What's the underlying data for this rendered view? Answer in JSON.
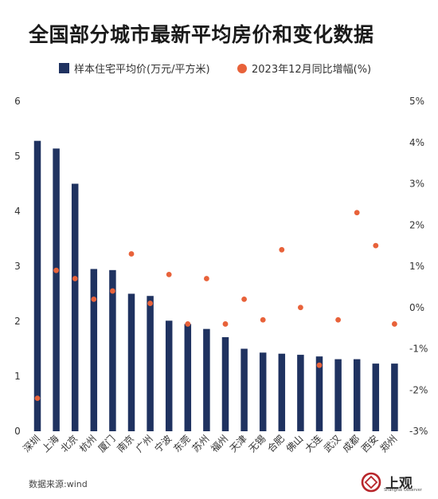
{
  "chart_data": {
    "type": "bar",
    "title": "全国部分城市最新平均房价和变化数据",
    "categories": [
      "深圳",
      "上海",
      "北京",
      "杭州",
      "厦门",
      "南京",
      "广州",
      "宁波",
      "东莞",
      "苏州",
      "福州",
      "天津",
      "无锡",
      "合肥",
      "佛山",
      "大连",
      "武汉",
      "成都",
      "西安",
      "郑州"
    ],
    "series": [
      {
        "name": "样本住宅平均价(万元/平方米)",
        "type": "bar",
        "axis": "left",
        "color": "#1f3260",
        "values": [
          5.28,
          5.14,
          4.5,
          2.95,
          2.93,
          2.5,
          2.46,
          2.01,
          1.95,
          1.86,
          1.71,
          1.5,
          1.43,
          1.41,
          1.39,
          1.36,
          1.31,
          1.31,
          1.23,
          1.23
        ]
      },
      {
        "name": "2023年12月同比增幅(%)",
        "type": "scatter",
        "axis": "right",
        "color": "#e8623a",
        "values": [
          -2.2,
          0.9,
          0.7,
          0.2,
          0.4,
          1.3,
          0.1,
          0.8,
          -0.4,
          0.7,
          -0.4,
          0.2,
          -0.3,
          1.4,
          0.0,
          -1.4,
          -0.3,
          2.3,
          1.5,
          -0.4
        ]
      }
    ],
    "ylim_left": [
      0,
      6
    ],
    "yticks_left": [
      "0",
      "1",
      "2",
      "3",
      "4",
      "5",
      "6"
    ],
    "ylim_right": [
      -3,
      5
    ],
    "yticks_right": [
      "-3%",
      "-2%",
      "-1%",
      "0%",
      "1%",
      "2%",
      "3%",
      "4%",
      "5%"
    ],
    "legend_position": "top",
    "grid": false
  },
  "source": "数据来源:wind",
  "logo": {
    "text": "上观",
    "subtext": "Shanghai Observer"
  }
}
